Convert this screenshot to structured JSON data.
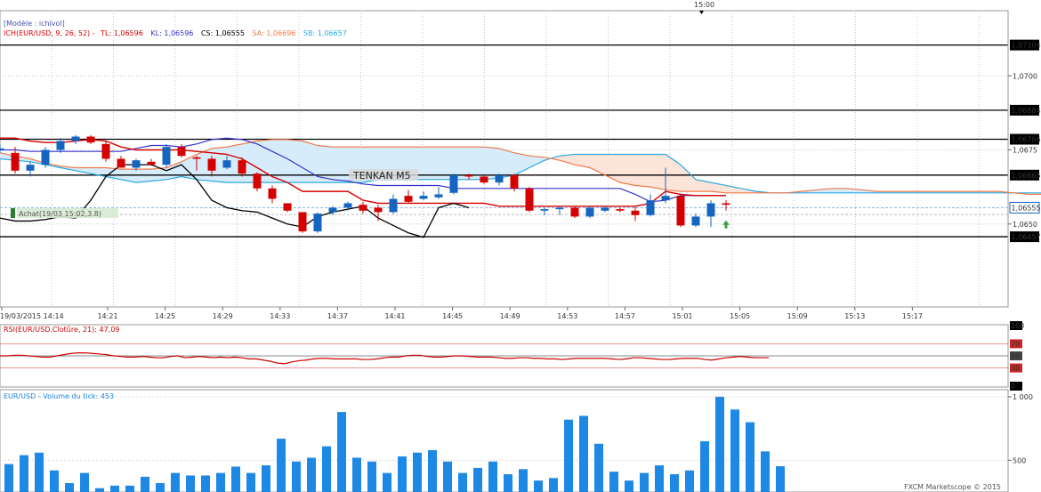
{
  "header": {
    "model": "[Modèle : ichivol]",
    "ich_prefix": "ICH(EUR/USD, 9, 26, 52) -",
    "tl": "TL: 1,06596",
    "kl": "KL: 1,06596",
    "cs": "CS: 1,06555",
    "sa": "SA: 1,06696",
    "sb": "SB: 1,06657",
    "top_time": "15:00"
  },
  "colors": {
    "up": "#1565c0",
    "down": "#d50000",
    "tenkan": "#d50000",
    "kijun": "#3333cc",
    "chikou": "#000000",
    "span_a": "#f07a4a",
    "span_b": "#29a8e0",
    "kumo_bull": "#d6ecfa",
    "kumo_bear": "#fde4d8",
    "volume": "#1e88e5",
    "rsi": "#cc0000"
  },
  "annotations": {
    "tenkan_label": "TENKAN M5",
    "trade_label": "Achat(19/03 15:02,3.8)"
  },
  "footer": {
    "brand": "FXCM Marketscope © 2015"
  },
  "chart_data": [
    {
      "type": "candlestick",
      "title": "ICH(EUR/USD, 9, 26, 52)",
      "ylim": [
        1.0622,
        1.0722
      ],
      "y_ticks": [
        "1,0700",
        "1,0675",
        "1,0650"
      ],
      "y_tick_values": [
        1.07,
        1.0675,
        1.065
      ],
      "levels": [
        1.07104,
        1.06884,
        1.06786,
        1.06665,
        1.06457
      ],
      "level_labels": [
        "1,07104",
        "1,06884",
        "1,06786",
        "1,06665",
        "1,06457"
      ],
      "current_price": 1.06555,
      "current_price_label": "1,06555",
      "bid_line": 1.06532,
      "x_ticks": [
        "19/03/2015 14:14",
        "14:21",
        "14:25",
        "14:29",
        "14:33",
        "14:37",
        "14:41",
        "14:45",
        "14:49",
        "14:53",
        "14:57",
        "15:01",
        "15:05",
        "15:09",
        "15:13",
        "15:17"
      ],
      "candles": [
        {
          "o": 1.06755,
          "h": 1.0677,
          "l": 1.0674,
          "c": 1.06755
        },
        {
          "o": 1.0674,
          "h": 1.0676,
          "l": 1.0667,
          "c": 1.0668
        },
        {
          "o": 1.0668,
          "h": 1.0671,
          "l": 1.0666,
          "c": 1.067
        },
        {
          "o": 1.067,
          "h": 1.0676,
          "l": 1.0669,
          "c": 1.0675
        },
        {
          "o": 1.0675,
          "h": 1.0679,
          "l": 1.0674,
          "c": 1.0678
        },
        {
          "o": 1.0678,
          "h": 1.068,
          "l": 1.0677,
          "c": 1.06795
        },
        {
          "o": 1.06795,
          "h": 1.068,
          "l": 1.0677,
          "c": 1.06775
        },
        {
          "o": 1.0677,
          "h": 1.0678,
          "l": 1.0671,
          "c": 1.0672
        },
        {
          "o": 1.0672,
          "h": 1.0673,
          "l": 1.0669,
          "c": 1.0669
        },
        {
          "o": 1.0669,
          "h": 1.0672,
          "l": 1.0668,
          "c": 1.06715
        },
        {
          "o": 1.0671,
          "h": 1.0672,
          "l": 1.067,
          "c": 1.067
        },
        {
          "o": 1.067,
          "h": 1.0677,
          "l": 1.0669,
          "c": 1.0676
        },
        {
          "o": 1.0676,
          "h": 1.0677,
          "l": 1.06725,
          "c": 1.0673
        },
        {
          "o": 1.06725,
          "h": 1.0673,
          "l": 1.0668,
          "c": 1.0672
        },
        {
          "o": 1.0672,
          "h": 1.0673,
          "l": 1.0666,
          "c": 1.0668
        },
        {
          "o": 1.0669,
          "h": 1.0673,
          "l": 1.06685,
          "c": 1.06715
        },
        {
          "o": 1.06715,
          "h": 1.06725,
          "l": 1.0666,
          "c": 1.0667
        },
        {
          "o": 1.0667,
          "h": 1.06675,
          "l": 1.0661,
          "c": 1.0662
        },
        {
          "o": 1.0662,
          "h": 1.0663,
          "l": 1.0657,
          "c": 1.06585
        },
        {
          "o": 1.0657,
          "h": 1.0657,
          "l": 1.0654,
          "c": 1.06545
        },
        {
          "o": 1.0654,
          "h": 1.0654,
          "l": 1.0647,
          "c": 1.06475
        },
        {
          "o": 1.06475,
          "h": 1.0654,
          "l": 1.0647,
          "c": 1.06535
        },
        {
          "o": 1.0654,
          "h": 1.0656,
          "l": 1.0653,
          "c": 1.06555
        },
        {
          "o": 1.06555,
          "h": 1.06575,
          "l": 1.06545,
          "c": 1.0657
        },
        {
          "o": 1.06565,
          "h": 1.06575,
          "l": 1.06535,
          "c": 1.06545
        },
        {
          "o": 1.06555,
          "h": 1.06565,
          "l": 1.0651,
          "c": 1.0654
        },
        {
          "o": 1.0654,
          "h": 1.066,
          "l": 1.06535,
          "c": 1.06585
        },
        {
          "o": 1.06595,
          "h": 1.06615,
          "l": 1.0657,
          "c": 1.06575
        },
        {
          "o": 1.06585,
          "h": 1.0661,
          "l": 1.0658,
          "c": 1.06595
        },
        {
          "o": 1.0659,
          "h": 1.06625,
          "l": 1.06585,
          "c": 1.066
        },
        {
          "o": 1.06605,
          "h": 1.0667,
          "l": 1.066,
          "c": 1.06665
        },
        {
          "o": 1.06665,
          "h": 1.0667,
          "l": 1.0665,
          "c": 1.0666
        },
        {
          "o": 1.0666,
          "h": 1.06665,
          "l": 1.06635,
          "c": 1.0664
        },
        {
          "o": 1.0664,
          "h": 1.0667,
          "l": 1.0663,
          "c": 1.06665
        },
        {
          "o": 1.06665,
          "h": 1.0667,
          "l": 1.0661,
          "c": 1.0662
        },
        {
          "o": 1.0662,
          "h": 1.06625,
          "l": 1.0654,
          "c": 1.06545
        },
        {
          "o": 1.06545,
          "h": 1.06555,
          "l": 1.0653,
          "c": 1.0655
        },
        {
          "o": 1.0655,
          "h": 1.0656,
          "l": 1.0653,
          "c": 1.06555
        },
        {
          "o": 1.06555,
          "h": 1.0656,
          "l": 1.0652,
          "c": 1.06525
        },
        {
          "o": 1.06525,
          "h": 1.0656,
          "l": 1.0652,
          "c": 1.06555
        },
        {
          "o": 1.06545,
          "h": 1.0656,
          "l": 1.0654,
          "c": 1.06555
        },
        {
          "o": 1.0655,
          "h": 1.06555,
          "l": 1.0654,
          "c": 1.06545
        },
        {
          "o": 1.06545,
          "h": 1.0656,
          "l": 1.0651,
          "c": 1.0653
        },
        {
          "o": 1.0653,
          "h": 1.066,
          "l": 1.06525,
          "c": 1.0658
        },
        {
          "o": 1.0658,
          "h": 1.0669,
          "l": 1.0657,
          "c": 1.06595
        },
        {
          "o": 1.06595,
          "h": 1.066,
          "l": 1.0649,
          "c": 1.06495
        },
        {
          "o": 1.06495,
          "h": 1.06535,
          "l": 1.0649,
          "c": 1.06525
        },
        {
          "o": 1.06525,
          "h": 1.0658,
          "l": 1.0649,
          "c": 1.0657
        },
        {
          "o": 1.0657,
          "h": 1.0658,
          "l": 1.06545,
          "c": 1.06565
        }
      ],
      "tenkan": [
        1.0679,
        1.0679,
        1.0678,
        1.06775,
        1.06775,
        1.0678,
        1.06785,
        1.0678,
        1.0676,
        1.0675,
        1.0675,
        1.0675,
        1.0675,
        1.06745,
        1.0674,
        1.06735,
        1.0672,
        1.0669,
        1.0666,
        1.0664,
        1.0661,
        1.0661,
        1.0661,
        1.0661,
        1.0658,
        1.0657,
        1.0657,
        1.0657,
        1.0657,
        1.0657,
        1.0657,
        1.0657,
        1.0657,
        1.0656,
        1.0656,
        1.0656,
        1.0656,
        1.0656,
        1.0656,
        1.0656,
        1.0656,
        1.0656,
        1.0656,
        1.0657,
        1.0661,
        1.066,
        1.06596,
        1.06596,
        1.06596
      ],
      "kijun": [
        1.0675,
        1.0675,
        1.06745,
        1.06745,
        1.06745,
        1.06745,
        1.06745,
        1.06745,
        1.06745,
        1.06755,
        1.06765,
        1.06765,
        1.0676,
        1.0677,
        1.06785,
        1.0679,
        1.06785,
        1.0677,
        1.06745,
        1.0672,
        1.0669,
        1.0666,
        1.0665,
        1.06645,
        1.06635,
        1.0663,
        1.0663,
        1.0663,
        1.0663,
        1.0663,
        1.0662,
        1.0662,
        1.0662,
        1.0662,
        1.0662,
        1.0662,
        1.0662,
        1.0662,
        1.0662,
        1.0662,
        1.0662,
        1.0662,
        1.066,
        1.06575,
        1.0658,
        1.06596,
        1.06596,
        1.06596,
        1.06596
      ],
      "chikou": [
        1.0652,
        1.0651,
        1.0651,
        1.06515,
        1.06525,
        1.0652,
        1.0658,
        1.0666,
        1.067,
        1.067,
        1.067,
        1.0668,
        1.067,
        1.0665,
        1.0658,
        1.06555,
        1.06545,
        1.0654,
        1.0652,
        1.065,
        1.0649,
        1.06525,
        1.0654,
        1.0655,
        1.0656,
        1.0652,
        1.06495,
        1.0647,
        1.06455,
        1.06555,
        1.0657,
        1.06555
      ],
      "span_a": [
        1.0674,
        1.0673,
        1.0672,
        1.06705,
        1.06695,
        1.0669,
        1.0669,
        1.0669,
        1.06685,
        1.06685,
        1.06685,
        1.0669,
        1.0671,
        1.06735,
        1.06755,
        1.0676,
        1.0677,
        1.0678,
        1.06785,
        1.06785,
        1.0678,
        1.06765,
        1.0676,
        1.0676,
        1.0676,
        1.0676,
        1.0676,
        1.0676,
        1.0676,
        1.0676,
        1.0676,
        1.0676,
        1.0676,
        1.06755,
        1.0674,
        1.0673,
        1.06725,
        1.06715,
        1.067,
        1.0669,
        1.06665,
        1.0664,
        1.0663,
        1.06625,
        1.06615,
        1.0661,
        1.0661,
        1.0661,
        1.06605,
        1.06605,
        1.06605,
        1.06605,
        1.06605,
        1.0661,
        1.06615,
        1.0662,
        1.0662,
        1.06615,
        1.0661,
        1.0661,
        1.0661,
        1.0661,
        1.0661,
        1.0661,
        1.0661,
        1.0661,
        1.0661,
        1.06605,
        1.066,
        1.066,
        1.066,
        1.066,
        1.066,
        1.066,
        1.066,
        1.066
      ],
      "span_b": [
        1.0672,
        1.06715,
        1.0671,
        1.067,
        1.0669,
        1.0668,
        1.0667,
        1.0666,
        1.0665,
        1.0664,
        1.06645,
        1.0665,
        1.0666,
        1.0665,
        1.06645,
        1.0664,
        1.0664,
        1.0664,
        1.0664,
        1.0664,
        1.0664,
        1.0664,
        1.0664,
        1.0664,
        1.0664,
        1.0665,
        1.0665,
        1.0665,
        1.0665,
        1.0665,
        1.0665,
        1.0665,
        1.0665,
        1.06655,
        1.06665,
        1.0669,
        1.06715,
        1.0673,
        1.06735,
        1.06735,
        1.06735,
        1.06735,
        1.06735,
        1.06735,
        1.06735,
        1.067,
        1.0665,
        1.0664,
        1.0663,
        1.0662,
        1.0661,
        1.06605,
        1.06605,
        1.06605,
        1.06605,
        1.06605,
        1.06605,
        1.06605,
        1.06605,
        1.06605,
        1.06605,
        1.06605,
        1.06605,
        1.06605,
        1.06605,
        1.06605,
        1.06605,
        1.06605,
        1.06605,
        1.06605,
        1.06605,
        1.06605,
        1.06605,
        1.06605,
        1.06605,
        1.06605
      ],
      "trade_index": 48,
      "signal_index": 48
    },
    {
      "type": "line",
      "title": "RSI(EUR/USD.Clotûre, 21): 47,09",
      "ylim": [
        0,
        100
      ],
      "y_ticks": [
        "100",
        "70",
        "50",
        "30",
        "0"
      ],
      "y_tick_values": [
        100,
        70,
        50,
        30,
        0
      ],
      "values": [
        50,
        50,
        51,
        51,
        50,
        49,
        48,
        48,
        50,
        52,
        54,
        55,
        55,
        54,
        53,
        52,
        50,
        49,
        48,
        48,
        49,
        48,
        47,
        47,
        49,
        50,
        47,
        48,
        49,
        48,
        47,
        48,
        47,
        48,
        47,
        45,
        45,
        43,
        41,
        38,
        37,
        40,
        42,
        43,
        45,
        46,
        46,
        45,
        45,
        45,
        45,
        44,
        44,
        45,
        47,
        48,
        48,
        50,
        51,
        51,
        49,
        48,
        48,
        49,
        50,
        50,
        49,
        48,
        48,
        48,
        47,
        46,
        46,
        47,
        47,
        46,
        46,
        45,
        45,
        44,
        45,
        46,
        46,
        46,
        46,
        46,
        45,
        44,
        45,
        47,
        47,
        46,
        45,
        44,
        44,
        45,
        46,
        46,
        46,
        44,
        43,
        45,
        47,
        48,
        49,
        48,
        47,
        47,
        47
      ]
    },
    {
      "type": "bar",
      "title": "EUR/USD - Volume du tick: 453",
      "ylim": [
        250,
        1000
      ],
      "y_ticks": [
        "1 000",
        "500"
      ],
      "y_tick_values": [
        1000,
        500
      ],
      "values": [
        470,
        540,
        560,
        420,
        320,
        400,
        280,
        300,
        300,
        370,
        320,
        400,
        380,
        380,
        400,
        450,
        400,
        460,
        670,
        490,
        520,
        610,
        880,
        520,
        490,
        400,
        530,
        560,
        580,
        490,
        400,
        440,
        490,
        390,
        430,
        340,
        360,
        820,
        850,
        630,
        410,
        340,
        400,
        460,
        390,
        420,
        650,
        1000,
        900,
        800,
        570,
        453
      ]
    }
  ]
}
